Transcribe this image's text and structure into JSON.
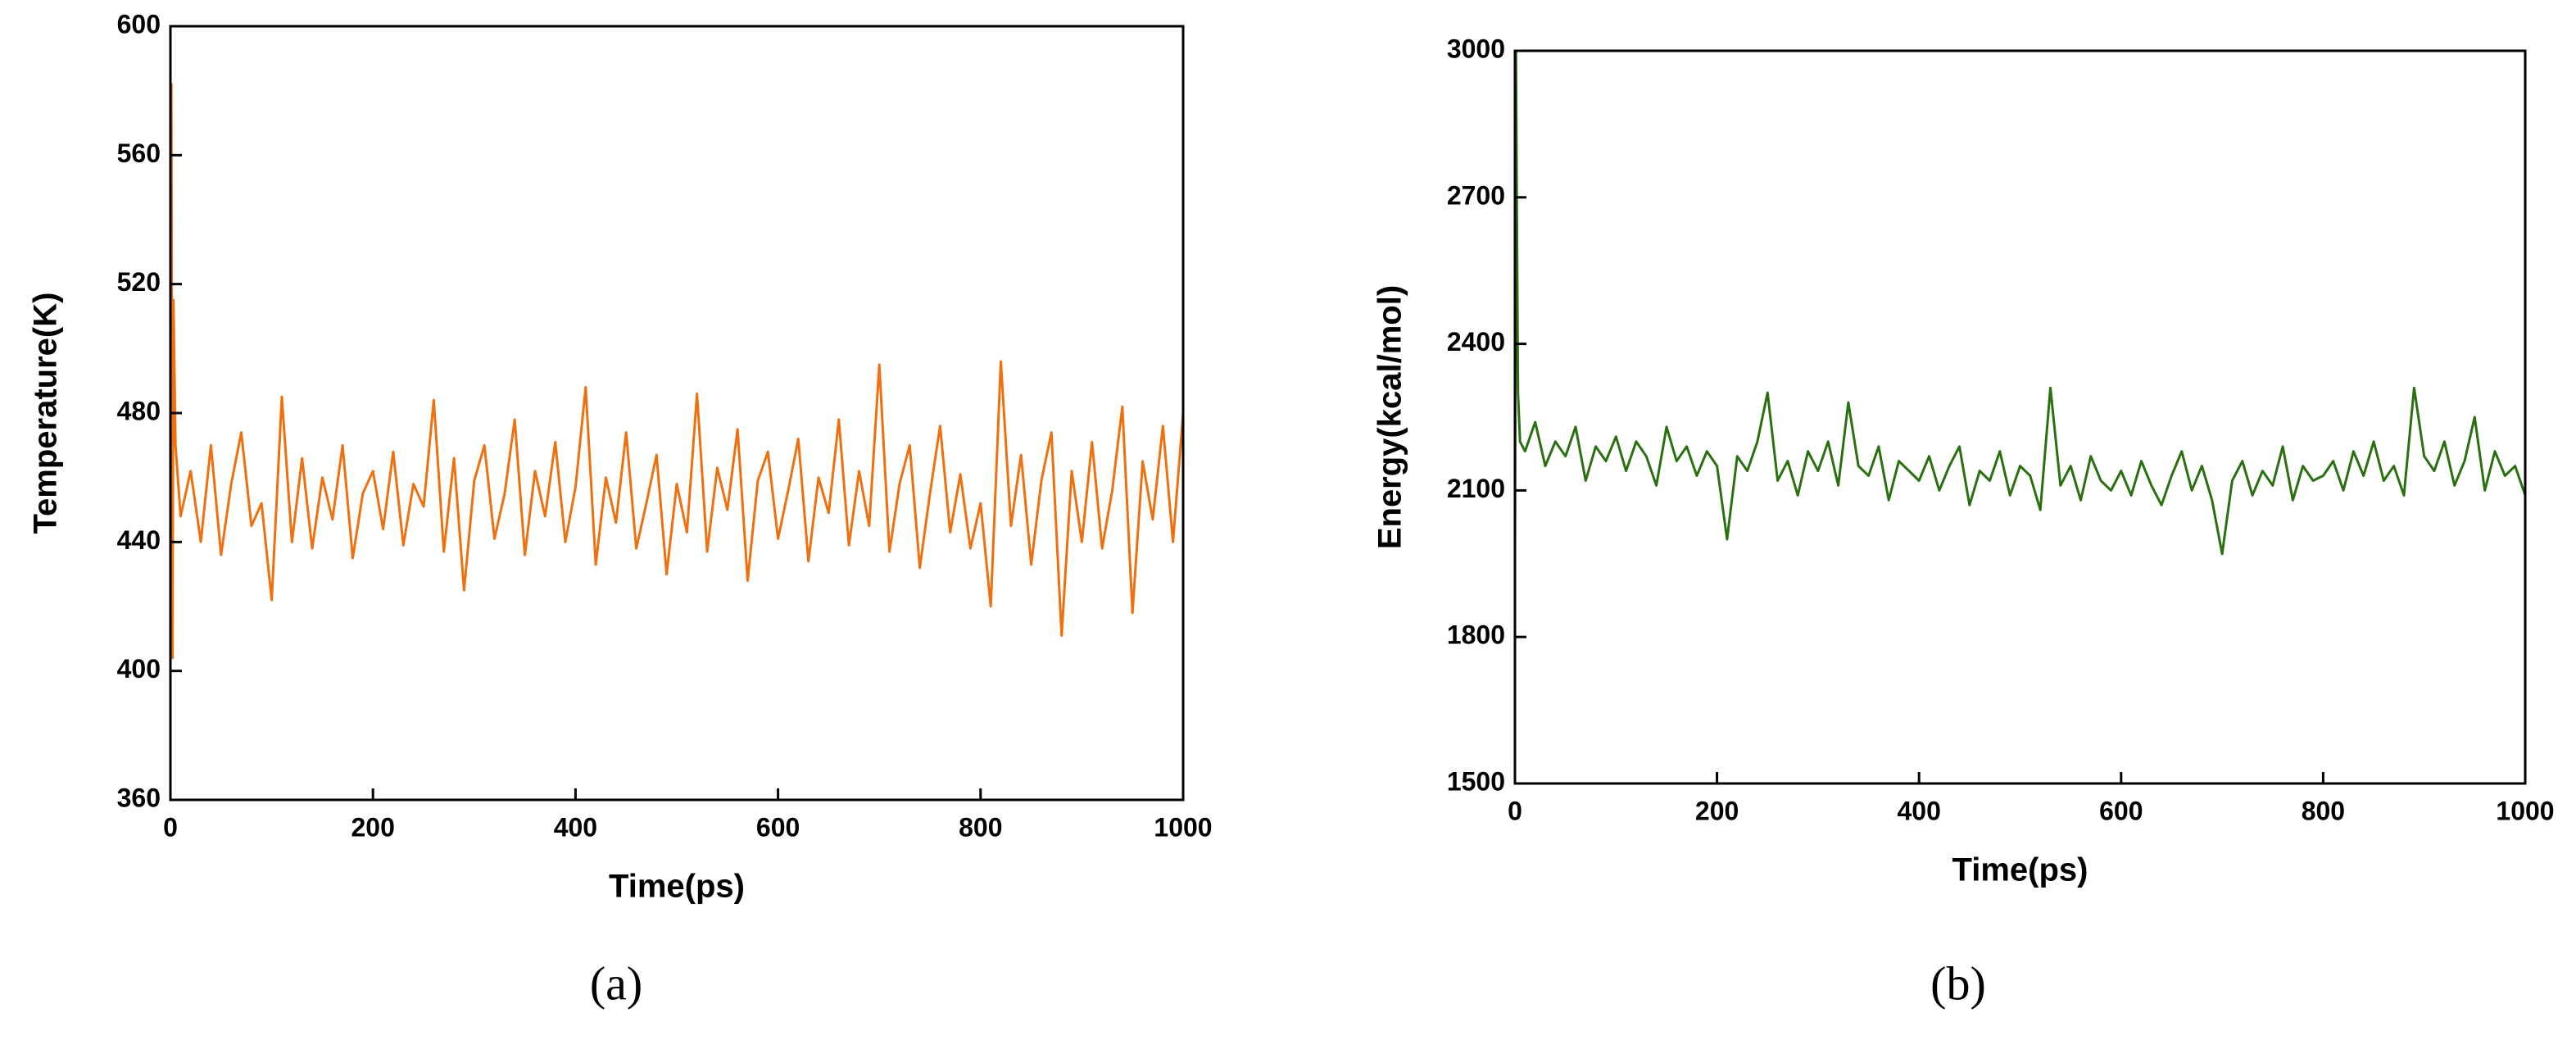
{
  "chart_data": [
    {
      "type": "line",
      "caption": "(a)",
      "xlabel": "Time(ps)",
      "ylabel": "Temperature(K)",
      "color": "#f07010",
      "xlim": [
        0,
        1000
      ],
      "xticks": [
        0,
        200,
        400,
        600,
        800,
        1000
      ],
      "ylim": [
        360,
        600
      ],
      "yticks": [
        360,
        400,
        440,
        480,
        520,
        560,
        600
      ],
      "x": [
        0,
        1,
        2,
        3,
        5,
        10,
        20,
        30,
        40,
        50,
        60,
        70,
        80,
        90,
        100,
        110,
        120,
        130,
        140,
        150,
        160,
        170,
        180,
        190,
        200,
        210,
        220,
        230,
        240,
        250,
        260,
        270,
        280,
        290,
        300,
        310,
        320,
        330,
        340,
        350,
        360,
        370,
        380,
        390,
        400,
        410,
        420,
        430,
        440,
        450,
        460,
        470,
        480,
        490,
        500,
        510,
        520,
        530,
        540,
        550,
        560,
        570,
        580,
        590,
        600,
        610,
        620,
        630,
        640,
        650,
        660,
        670,
        680,
        690,
        700,
        710,
        720,
        730,
        740,
        750,
        760,
        770,
        780,
        790,
        800,
        810,
        820,
        830,
        840,
        850,
        860,
        870,
        880,
        890,
        900,
        910,
        920,
        930,
        940,
        950,
        960,
        970,
        980,
        990,
        1000
      ],
      "values": [
        455,
        582,
        404,
        515,
        470,
        448,
        462,
        440,
        470,
        436,
        458,
        474,
        445,
        452,
        422,
        485,
        440,
        466,
        438,
        460,
        447,
        470,
        435,
        455,
        462,
        444,
        468,
        439,
        458,
        451,
        484,
        437,
        466,
        425,
        459,
        470,
        441,
        455,
        478,
        436,
        462,
        448,
        471,
        440,
        457,
        488,
        433,
        460,
        446,
        474,
        438,
        452,
        467,
        430,
        458,
        443,
        486,
        437,
        463,
        450,
        475,
        428,
        459,
        468,
        441,
        456,
        472,
        434,
        460,
        449,
        478,
        439,
        462,
        445,
        495,
        437,
        458,
        470,
        432,
        455,
        476,
        443,
        461,
        438,
        452,
        420,
        496,
        445,
        467,
        433,
        459,
        474,
        411,
        462,
        440,
        471,
        438,
        456,
        482,
        418,
        465,
        447,
        476,
        440,
        480
      ]
    },
    {
      "type": "line",
      "caption": "(b)",
      "xlabel": "Time(ps)",
      "ylabel": "Energy(kcal/mol)",
      "color": "#2a7010",
      "xlim": [
        0,
        1000
      ],
      "xticks": [
        0,
        200,
        400,
        600,
        800,
        1000
      ],
      "ylim": [
        1500,
        3000
      ],
      "yticks": [
        1500,
        1800,
        2100,
        2400,
        2700,
        3000
      ],
      "x": [
        0,
        1,
        2,
        3,
        5,
        10,
        20,
        30,
        40,
        50,
        60,
        70,
        80,
        90,
        100,
        110,
        120,
        130,
        140,
        150,
        160,
        170,
        180,
        190,
        200,
        210,
        220,
        230,
        240,
        250,
        260,
        270,
        280,
        290,
        300,
        310,
        320,
        330,
        340,
        350,
        360,
        370,
        380,
        390,
        400,
        410,
        420,
        430,
        440,
        450,
        460,
        470,
        480,
        490,
        500,
        510,
        520,
        530,
        540,
        550,
        560,
        570,
        580,
        590,
        600,
        610,
        620,
        630,
        640,
        650,
        660,
        670,
        680,
        690,
        700,
        710,
        720,
        730,
        740,
        750,
        760,
        770,
        780,
        790,
        800,
        810,
        820,
        830,
        840,
        850,
        860,
        870,
        880,
        890,
        900,
        910,
        920,
        930,
        940,
        950,
        960,
        970,
        980,
        990,
        1000
      ],
      "values": [
        2000,
        3000,
        2620,
        2300,
        2200,
        2180,
        2240,
        2150,
        2200,
        2170,
        2230,
        2120,
        2190,
        2160,
        2210,
        2140,
        2200,
        2170,
        2110,
        2230,
        2160,
        2190,
        2130,
        2180,
        2150,
        2000,
        2170,
        2140,
        2200,
        2300,
        2120,
        2160,
        2090,
        2180,
        2140,
        2200,
        2110,
        2280,
        2150,
        2130,
        2190,
        2080,
        2160,
        2140,
        2120,
        2170,
        2100,
        2150,
        2190,
        2070,
        2140,
        2120,
        2180,
        2090,
        2150,
        2130,
        2060,
        2310,
        2110,
        2150,
        2080,
        2170,
        2120,
        2100,
        2140,
        2090,
        2160,
        2110,
        2070,
        2130,
        2180,
        2100,
        2150,
        2080,
        1970,
        2120,
        2160,
        2090,
        2140,
        2110,
        2190,
        2080,
        2150,
        2120,
        2130,
        2160,
        2100,
        2180,
        2130,
        2200,
        2120,
        2150,
        2090,
        2310,
        2170,
        2140,
        2200,
        2110,
        2160,
        2250,
        2100,
        2180,
        2130,
        2150,
        2090
      ]
    }
  ]
}
